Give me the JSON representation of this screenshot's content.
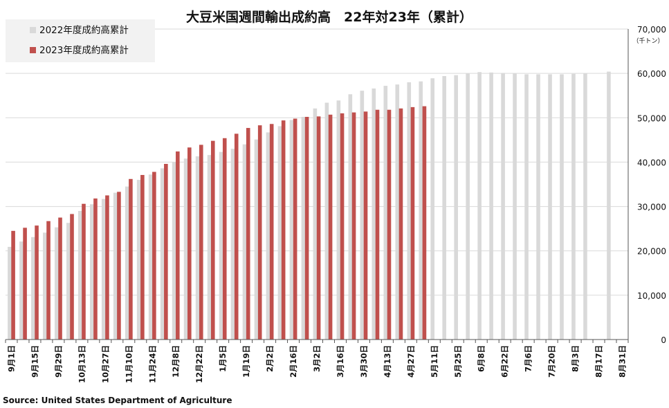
{
  "chart_data": {
    "type": "bar",
    "title": "大豆米国週間輸出成約高　22年対23年（累計）",
    "y_unit": "（千トン）",
    "source": "Source: United States Department of Agriculture",
    "ylim": [
      0,
      70000
    ],
    "yticks": [
      "0",
      "10,000",
      "20,000",
      "30,000",
      "40,000",
      "50,000",
      "60,000",
      "70,000"
    ],
    "grid": true,
    "legend_position": "top-left",
    "x_tick_labels": [
      "9月1日",
      "9月15日",
      "9月29日",
      "10月13日",
      "10月27日",
      "11月10日",
      "11月24日",
      "12月8日",
      "12月22日",
      "1月5日",
      "1月19日",
      "2月2日",
      "2月16日",
      "3月2日",
      "3月16日",
      "3月30日",
      "4月13日",
      "4月27日",
      "5月11日",
      "5月25日",
      "6月8日",
      "6月22日",
      "7月6日",
      "7月20日",
      "8月3日",
      "8月17日",
      "8月31日"
    ],
    "series": [
      {
        "name": "2022年度成約高累計",
        "color": "#d9d9d9",
        "values": [
          20900,
          22100,
          23100,
          24100,
          25300,
          26300,
          29000,
          30500,
          31700,
          33100,
          34500,
          36000,
          37200,
          38600,
          40000,
          40800,
          41300,
          41600,
          42300,
          43000,
          44000,
          45100,
          46700,
          48100,
          49500,
          50200,
          52100,
          53400,
          53900,
          55300,
          56100,
          56600,
          57200,
          57500,
          58000,
          58200,
          58900,
          59400,
          59600,
          60000,
          60300,
          60200,
          60100,
          60000,
          59800,
          59800,
          59800,
          59800,
          59900,
          60000,
          null,
          60400
        ]
      },
      {
        "name": "2023年度成約高累計",
        "color": "#c0504d",
        "values": [
          24500,
          25200,
          25700,
          26700,
          27500,
          28300,
          30600,
          31800,
          32500,
          33300,
          36200,
          37100,
          37800,
          39600,
          42400,
          43300,
          43900,
          44800,
          45400,
          46400,
          47700,
          48300,
          48600,
          49400,
          49800,
          50200,
          50300,
          50700,
          51000,
          51200,
          51400,
          51800,
          51800,
          52100,
          52400,
          52600
        ]
      }
    ]
  }
}
